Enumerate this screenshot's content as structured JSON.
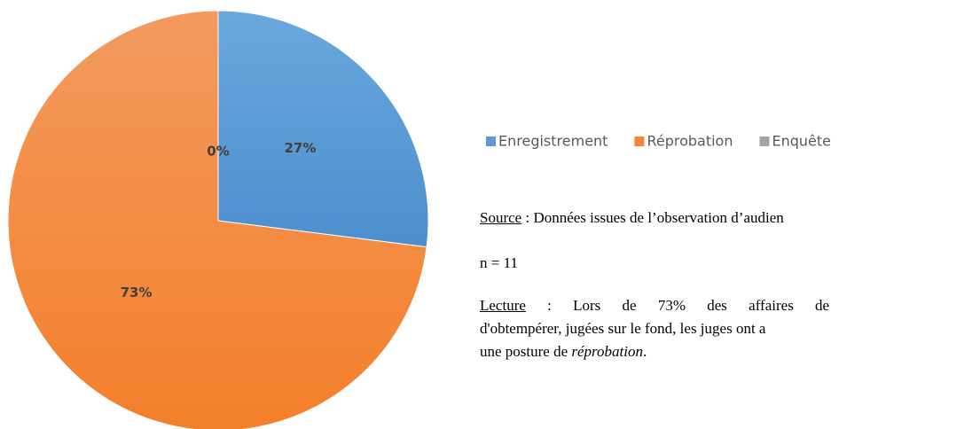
{
  "chart_data": {
    "type": "pie",
    "categories": [
      "Enregistrement",
      "Réprobation",
      "Enquête"
    ],
    "values": [
      27,
      73,
      0
    ],
    "value_labels": [
      "27%",
      "73%",
      "0%"
    ],
    "colors": [
      "#5b9bd5",
      "#f4863a",
      "#a5a5a5"
    ],
    "legend": "right"
  },
  "notes": {
    "source_label": "Source",
    "source_text": " : Données issues de l’observation d’audien",
    "n": "n = 11",
    "lecture_label": "Lecture",
    "lecture_line1": " : Lors de 73% des affaires de",
    "lecture_line2": "d'obtempérer, jugées sur le fond, les juges ont a",
    "lecture_line3_start": "une posture  de ",
    "lecture_line3_em": "réprobation",
    "lecture_line3_end": "."
  }
}
